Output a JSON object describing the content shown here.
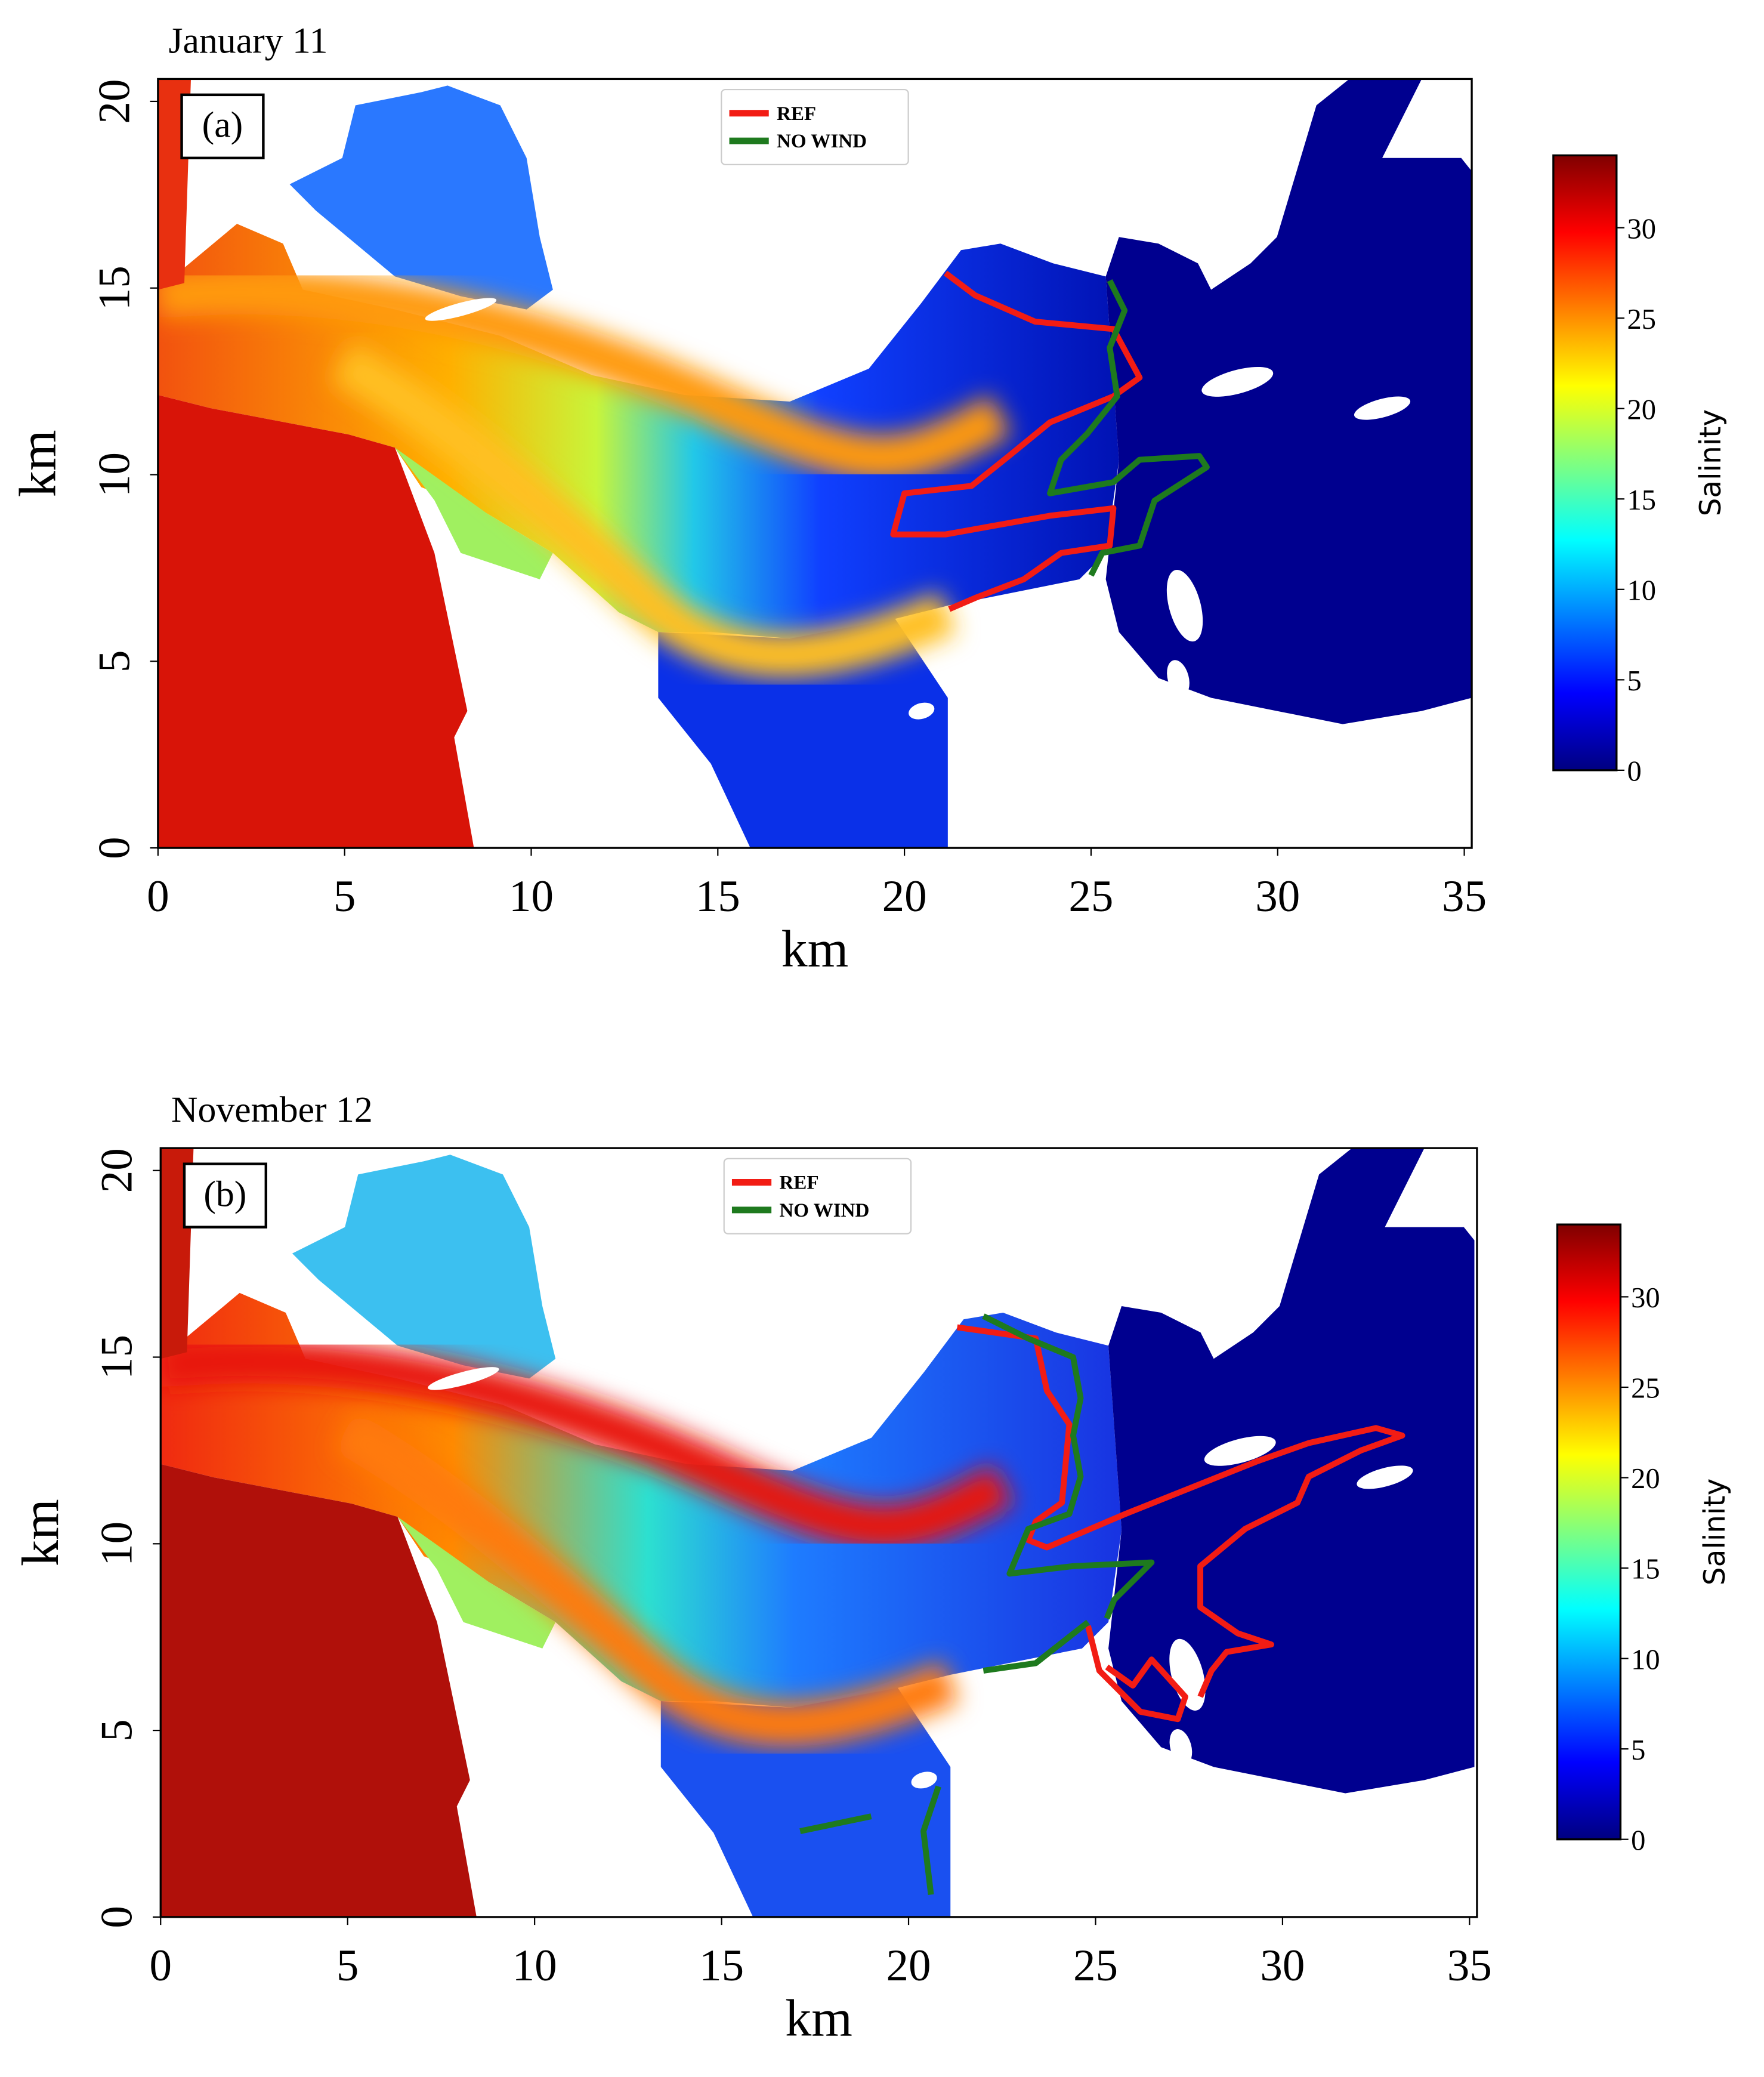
{
  "chart_data": [
    {
      "type": "map",
      "title": "January 11",
      "panel_label": "(a)",
      "x_label": "km",
      "y_label": "km",
      "xlim": [
        0,
        35.2
      ],
      "ylim": [
        0,
        20.6
      ],
      "xticks": [
        0,
        5,
        10,
        15,
        20,
        25,
        30,
        35
      ],
      "yticks": [
        0,
        5,
        10,
        15,
        20
      ],
      "series": [
        {
          "name": "REF",
          "color": "#f21c14",
          "x": [
            21.1,
            21.9,
            23.5,
            25.6,
            26.3,
            25.6,
            23.9,
            22.8,
            21.8,
            20.0,
            19.7,
            21.1,
            23.9,
            25.6,
            25.5,
            24.2,
            23.2,
            21.9,
            21.2
          ],
          "y": [
            15.4,
            14.8,
            14.1,
            13.9,
            12.6,
            12.1,
            11.4,
            10.5,
            9.7,
            9.5,
            8.4,
            8.4,
            8.9,
            9.1,
            8.1,
            7.9,
            7.2,
            6.7,
            6.4
          ]
        },
        {
          "name": "NO WIND",
          "color": "#1e7a1e",
          "x": [
            25.5,
            25.9,
            25.5,
            25.7,
            24.9,
            24.2,
            23.9,
            25.6,
            26.3,
            27.9,
            28.1,
            26.7,
            26.3,
            25.3,
            25.0
          ],
          "y": [
            15.2,
            14.4,
            13.4,
            12.1,
            11.1,
            10.4,
            9.5,
            9.8,
            10.4,
            10.5,
            10.2,
            9.3,
            8.1,
            7.9,
            7.3
          ]
        }
      ],
      "colorbar": {
        "label": "Salinity",
        "lim": [
          0,
          34
        ],
        "ticks": [
          0,
          5,
          10,
          15,
          20,
          25,
          30
        ]
      }
    },
    {
      "type": "map",
      "title": "November 12",
      "panel_label": "(b)",
      "x_label": "km",
      "y_label": "km",
      "xlim": [
        0,
        35.2
      ],
      "ylim": [
        0,
        20.6
      ],
      "xticks": [
        0,
        5,
        10,
        15,
        20,
        25,
        30,
        35
      ],
      "yticks": [
        0,
        5,
        10,
        15,
        20
      ],
      "series": [
        {
          "name": "REF",
          "color": "#f21c14",
          "x": [
            21.3,
            23.4,
            23.7,
            24.3,
            24.1,
            23.4,
            23.2,
            23.7,
            25.8,
            29.3,
            30.7,
            32.5,
            33.2,
            32.1,
            30.7,
            30.4,
            29.0,
            27.8,
            27.8,
            28.8,
            29.7,
            28.5,
            28.1,
            27.8,
            null,
            24.8,
            25.1,
            26.2,
            27.2,
            27.4,
            26.5,
            26.0,
            25.3
          ],
          "y": [
            15.8,
            15.5,
            14.1,
            13.2,
            11.1,
            10.6,
            10.1,
            9.9,
            10.8,
            12.2,
            12.7,
            13.1,
            12.9,
            12.5,
            11.8,
            11.1,
            10.4,
            9.4,
            8.3,
            7.6,
            7.3,
            7.1,
            6.6,
            5.9,
            null,
            7.8,
            6.6,
            5.5,
            5.3,
            5.9,
            6.9,
            6.2,
            6.7
          ]
        },
        {
          "name": "NO WIND",
          "color": "#1e7a1e",
          "x": [
            22.0,
            23.2,
            24.4,
            24.6,
            24.4,
            24.6,
            24.3,
            23.2,
            22.7,
            24.4,
            26.5,
            25.5,
            25.3,
            null,
            22.0,
            23.4,
            24.8,
            null,
            20.8,
            20.4,
            20.6,
            null,
            17.1,
            19.0
          ],
          "y": [
            16.1,
            15.5,
            15.0,
            13.9,
            12.9,
            11.8,
            10.8,
            10.4,
            9.2,
            9.4,
            9.5,
            8.5,
            8.0,
            null,
            6.6,
            6.8,
            7.9,
            null,
            3.5,
            2.3,
            0.6,
            null,
            2.3,
            2.7
          ]
        }
      ],
      "colorbar": {
        "label": "Salinity",
        "lim": [
          0,
          34
        ],
        "ticks": [
          0,
          5,
          10,
          15,
          20,
          25,
          30
        ]
      }
    }
  ]
}
